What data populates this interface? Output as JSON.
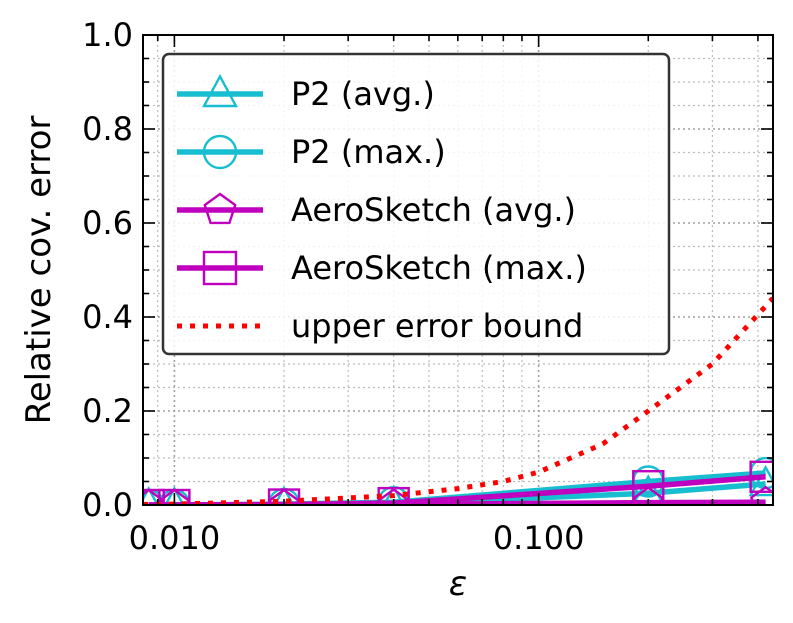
{
  "chart_data": {
    "type": "line",
    "title": "",
    "xlabel": "ε",
    "ylabel": "Relative cov. error",
    "xscale": "log",
    "xlim": [
      0.0082,
      0.44
    ],
    "ylim": [
      0.0,
      1.0
    ],
    "xticks": [
      {
        "value": 0.01,
        "label": "0.010"
      },
      {
        "value": 0.1,
        "label": "0.100"
      }
    ],
    "yticks": [
      {
        "value": 0.0,
        "label": "0.0"
      },
      {
        "value": 0.2,
        "label": "0.2"
      },
      {
        "value": 0.4,
        "label": "0.4"
      },
      {
        "value": 0.6,
        "label": "0.6"
      },
      {
        "value": 0.8,
        "label": "0.8"
      },
      {
        "value": 1.0,
        "label": "1.0"
      }
    ],
    "grid": true,
    "legend_position": "upper-left",
    "series": [
      {
        "name": "P2 (avg.)",
        "color": "#17becf",
        "marker": "triangle",
        "x": [
          0.0085,
          0.01,
          0.02,
          0.04,
          0.2,
          0.42
        ],
        "y": [
          0.0,
          0.0,
          0.001,
          0.003,
          0.025,
          0.045
        ]
      },
      {
        "name": "P2 (max.)",
        "color": "#17becf",
        "marker": "circle",
        "x": [
          0.0085,
          0.01,
          0.02,
          0.04,
          0.2,
          0.42
        ],
        "y": [
          0.0,
          0.0,
          0.002,
          0.006,
          0.05,
          0.068
        ]
      },
      {
        "name": "AeroSketch (avg.)",
        "color": "#bf00bf",
        "marker": "pentagon",
        "x": [
          0.0085,
          0.01,
          0.02,
          0.04,
          0.2,
          0.42
        ],
        "y": [
          0.0,
          0.0,
          0.0,
          0.001,
          0.005,
          0.006
        ]
      },
      {
        "name": "AeroSketch (max.)",
        "color": "#bf00bf",
        "marker": "square",
        "x": [
          0.0085,
          0.01,
          0.02,
          0.04,
          0.2,
          0.42
        ],
        "y": [
          0.0,
          0.0,
          0.001,
          0.004,
          0.04,
          0.06
        ]
      },
      {
        "name": "upper error bound",
        "color": "#ff0000",
        "marker": "none",
        "linestyle": "dotted",
        "x": [
          0.0082,
          0.01,
          0.02,
          0.04,
          0.06,
          0.08,
          0.1,
          0.15,
          0.2,
          0.3,
          0.44
        ],
        "y": [
          0.001,
          0.002,
          0.008,
          0.02,
          0.035,
          0.05,
          0.07,
          0.13,
          0.2,
          0.3,
          0.44
        ]
      }
    ]
  }
}
